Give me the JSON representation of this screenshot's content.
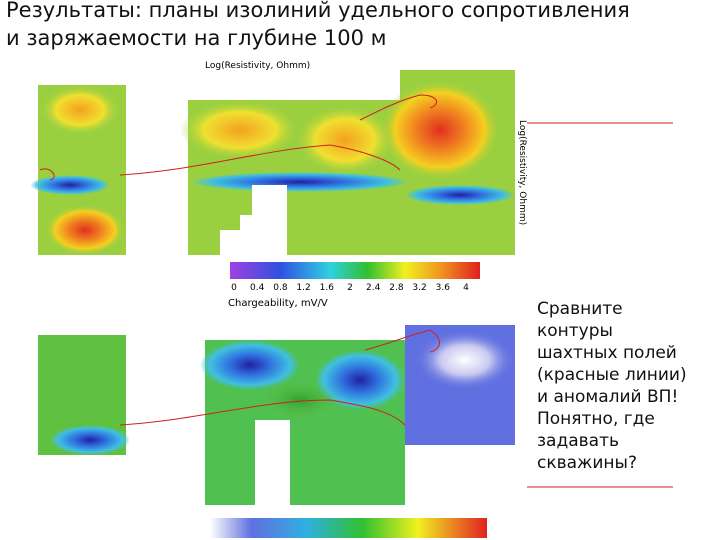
{
  "title": [
    "Результаты: планы изолиний удельного сопротивления",
    "и заряжаемости на глубине 100 м"
  ],
  "top_map": {
    "axis_title": "Log(Resistivity, Ohmm)",
    "side_label": "Log(Resistivity, Ohmm)",
    "colorbar_ticks": [
      "0",
      "0.4",
      "0.8",
      "1.2",
      "1.6",
      "2",
      "2.4",
      "2.8",
      "3.2",
      "3.6",
      "4"
    ]
  },
  "bottom_map": {
    "axis_title": "Chargeability, mV/V"
  },
  "note": [
    "Сравните",
    "контуры",
    "шахтных полей",
    "(красные линии)",
    "и аномалий ВП!",
    "Понятно, где",
    "задавать",
    "скважины?"
  ]
}
